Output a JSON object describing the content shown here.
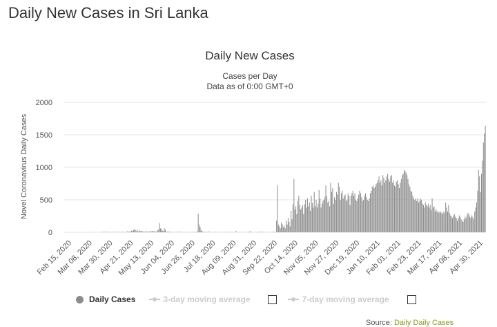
{
  "page": {
    "title": "Daily New Cases in Sri Lanka"
  },
  "chart_data": {
    "type": "bar",
    "title": "Daily New Cases",
    "subtitle_lines": [
      "Cases per Day",
      "Data as of 0:00 GMT+0"
    ],
    "xlabel": "",
    "ylabel": "Novel Coronavirus Daily Cases",
    "ylim": [
      0,
      2000
    ],
    "y_ticks": [
      0,
      500,
      1000,
      1500,
      2000
    ],
    "grid": true,
    "legend_position": "bottom",
    "x_start_date": "2020-02-15",
    "x_end_date": "2021-04-30",
    "x_tick_labels": [
      "Feb 15, 2020",
      "Mar 08, 2020",
      "Mar 30, 2020",
      "Apr 21, 2020",
      "May 13, 2020",
      "Jun 04, 2020",
      "Jun 26, 2020",
      "Jul 18, 2020",
      "Aug 09, 2020",
      "Aug 31, 2020",
      "Sep 22, 2020",
      "Oct 14, 2020",
      "Nov 05, 2020",
      "Nov 27, 2020",
      "Dec 19, 2020",
      "Jan 10, 2021",
      "Feb 01, 2021",
      "Feb 23, 2021",
      "Mar 17, 2021",
      "Apr 08, 2021",
      "Apr 30, 2021"
    ],
    "series": [
      {
        "name": "Daily Cases",
        "color": "#8c8c8c",
        "values": [
          0,
          0,
          0,
          0,
          0,
          0,
          0,
          0,
          0,
          0,
          0,
          0,
          0,
          0,
          0,
          0,
          0,
          0,
          0,
          0,
          0,
          0,
          0,
          0,
          0,
          0,
          0,
          0,
          0,
          0,
          1,
          0,
          0,
          1,
          0,
          2,
          0,
          0,
          3,
          1,
          5,
          8,
          8,
          2,
          4,
          6,
          2,
          3,
          4,
          4,
          3,
          5,
          7,
          4,
          3,
          2,
          2,
          5,
          4,
          1,
          7,
          8,
          3,
          3,
          6,
          3,
          17,
          6,
          10,
          12,
          25,
          20,
          38,
          48,
          34,
          15,
          40,
          10,
          28,
          20,
          15,
          20,
          10,
          8,
          12,
          10,
          15,
          6,
          3,
          18,
          12,
          15,
          22,
          10,
          20,
          8,
          12,
          30,
          45,
          140,
          60,
          50,
          25,
          20,
          60,
          40,
          10,
          5,
          12,
          8,
          5,
          3,
          4,
          5,
          2,
          3,
          2,
          5,
          2,
          12,
          3,
          4,
          4,
          2,
          2,
          3,
          2,
          4,
          5,
          3,
          2,
          2,
          1,
          5,
          1,
          2,
          8,
          3,
          15,
          287,
          120,
          80,
          30,
          20,
          5,
          8,
          4,
          2,
          6,
          3,
          12,
          3,
          4,
          2,
          3,
          2,
          3,
          4,
          1,
          5,
          2,
          3,
          1,
          3,
          2,
          4,
          2,
          6,
          2,
          3,
          2,
          4,
          1,
          5,
          3,
          2,
          1,
          2,
          20,
          3,
          1,
          2,
          4,
          6,
          2,
          1,
          3,
          2,
          3,
          1,
          2,
          4,
          8,
          15,
          3,
          4,
          2,
          1,
          3,
          2,
          1,
          4,
          5,
          11,
          4,
          3,
          8,
          2,
          3,
          1,
          4,
          0,
          2,
          1,
          3,
          2,
          5,
          8,
          4,
          6,
          180,
          724,
          118,
          90,
          60,
          150,
          120,
          80,
          100,
          60,
          180,
          120,
          220,
          160,
          90,
          330,
          200,
          430,
          820,
          350,
          400,
          280,
          480,
          560,
          420,
          350,
          380,
          420,
          280,
          430,
          500,
          380,
          520,
          400,
          460,
          330,
          560,
          450,
          380,
          620,
          400,
          500,
          380,
          440,
          650,
          520,
          380,
          440,
          480,
          500,
          540,
          720,
          560,
          460,
          480,
          400,
          760,
          620,
          680,
          440,
          540,
          500,
          620,
          580,
          760,
          700,
          500,
          600,
          640,
          520,
          560,
          580,
          480,
          500,
          600,
          560,
          420,
          560,
          600,
          640,
          560,
          600,
          500,
          480,
          520,
          580,
          640,
          600,
          540,
          480,
          500,
          560,
          600,
          540,
          500,
          480,
          520,
          600,
          640,
          700,
          720,
          680,
          700,
          740,
          760,
          800,
          860,
          760,
          800,
          720,
          880,
          840,
          760,
          800,
          860,
          900,
          820,
          780,
          860,
          880,
          760,
          800,
          720,
          700,
          780,
          800,
          740,
          680,
          760,
          820,
          880,
          900,
          960,
          940,
          920,
          880,
          820,
          740,
          700,
          640,
          620,
          560,
          520,
          500,
          520,
          480,
          520,
          460,
          480,
          520,
          500,
          440,
          420,
          380,
          460,
          420,
          400,
          440,
          380,
          420,
          340,
          520,
          380,
          400,
          320,
          360,
          330,
          300,
          320,
          300,
          320,
          300,
          280,
          320,
          300,
          460,
          380,
          320,
          420,
          300,
          260,
          240,
          220,
          260,
          280,
          240,
          220,
          180,
          220,
          260,
          240,
          200,
          180,
          160,
          200,
          240,
          220,
          260,
          300,
          280,
          240,
          220,
          260,
          240,
          200,
          320,
          380,
          460,
          640,
          960,
          860,
          620,
          900,
          1100,
          1380,
          1520,
          1640
        ]
      }
    ]
  },
  "legend": {
    "daily_cases": "Daily Cases",
    "ma3": "3-day moving average",
    "ma7": "7-day moving average"
  },
  "source": {
    "prefix": "Source:",
    "rest": "Daily Daily Cases"
  },
  "colors": {
    "bar": "#8c8c8c",
    "grid": "#e6e6e6",
    "legend_inactive": "#cccccc"
  }
}
